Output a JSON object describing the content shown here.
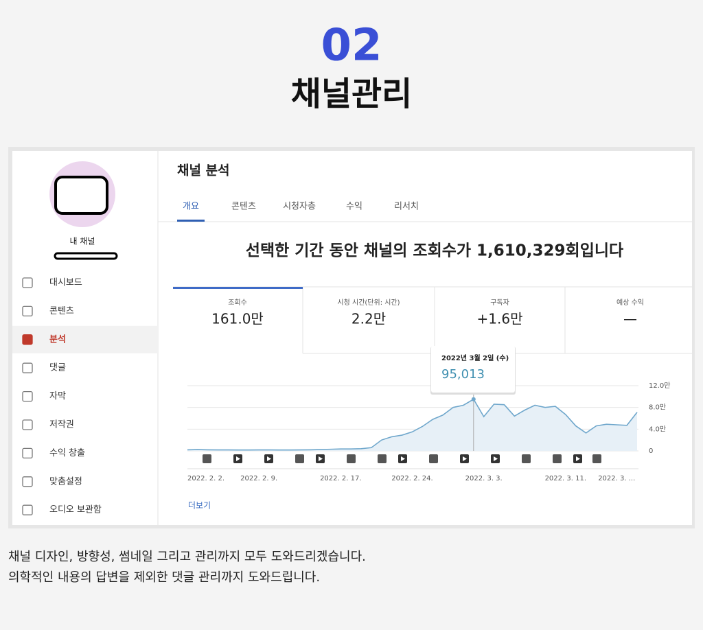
{
  "header": {
    "number": "02",
    "title": "채널관리"
  },
  "sidebar": {
    "channel_name": "내 채널",
    "items": [
      "대시보드",
      "콘텐츠",
      "분석",
      "댓글",
      "자막",
      "저작권",
      "수익 창출",
      "맞춤설정",
      "오디오 보관함"
    ],
    "active_item": "분석"
  },
  "main": {
    "title": "채널 분석",
    "tabs": [
      "개요",
      "콘텐츠",
      "시청자층",
      "수익",
      "리서치"
    ],
    "active_tab": "개요",
    "headline": "선택한 기간 동안 채널의 조회수가 1,610,329회입니다",
    "metrics": [
      {
        "label": "조회수",
        "value": "161.0만"
      },
      {
        "label": "시청 시간(단위: 시간)",
        "value": "2.2만"
      },
      {
        "label": "구독자",
        "value": "+1.6만"
      },
      {
        "label": "예상 수익",
        "value": "—"
      }
    ],
    "more_link": "더보기"
  },
  "chart_data": {
    "type": "line",
    "categories": [
      "2022. 2. 2.",
      null,
      null,
      null,
      null,
      null,
      null,
      "2022. 2. 9.",
      null,
      null,
      null,
      null,
      null,
      null,
      null,
      "2022. 2. 17.",
      null,
      null,
      null,
      null,
      null,
      null,
      "2022. 2. 24.",
      null,
      null,
      null,
      null,
      null,
      null,
      "2022. 3. 3.",
      null,
      null,
      null,
      null,
      null,
      null,
      null,
      "2022. 3. 11.",
      null,
      null,
      null,
      null,
      "2022. 3. ...",
      null,
      null
    ],
    "values": [
      2000,
      2500,
      2000,
      1800,
      1800,
      1700,
      1700,
      1800,
      1800,
      1700,
      1600,
      1800,
      2000,
      2500,
      3000,
      3500,
      3500,
      4000,
      6000,
      20000,
      26000,
      29000,
      35000,
      45000,
      58000,
      66000,
      80000,
      84000,
      95013,
      63000,
      86000,
      85000,
      64000,
      75000,
      84000,
      80000,
      82000,
      67000,
      46000,
      33000,
      46000,
      49000,
      48000,
      47000,
      71000
    ],
    "value_labels": [
      null,
      null,
      null,
      null,
      null,
      null,
      null,
      null,
      null,
      null,
      null,
      null,
      null,
      null,
      null,
      null,
      null,
      null,
      null,
      null,
      null,
      null,
      null,
      null,
      null,
      null,
      null,
      null,
      "95,013",
      null,
      null,
      null,
      null,
      null,
      null,
      null,
      null,
      null,
      null,
      null,
      null,
      null,
      null,
      null,
      null
    ],
    "tooltip_title": "2022년 3월 2일 (수)",
    "ylim": [
      0,
      120000
    ],
    "yticks": [
      0,
      {
        "value": 40000,
        "label": "4.0만"
      },
      {
        "value": 80000,
        "label": "8.0만"
      },
      {
        "value": 120000,
        "label": "12.0만"
      }
    ],
    "grid": true,
    "color": "#6fa7cc",
    "area_color": "#e7f0f7"
  },
  "footer": {
    "lines": [
      "채널 디자인, 방향성, 썸네일  그리고 관리까지 모두 도와드리겠습니다.",
      "의학적인 내용의 답변을 제외한 댓글 관리까지 도와드립니다."
    ]
  }
}
